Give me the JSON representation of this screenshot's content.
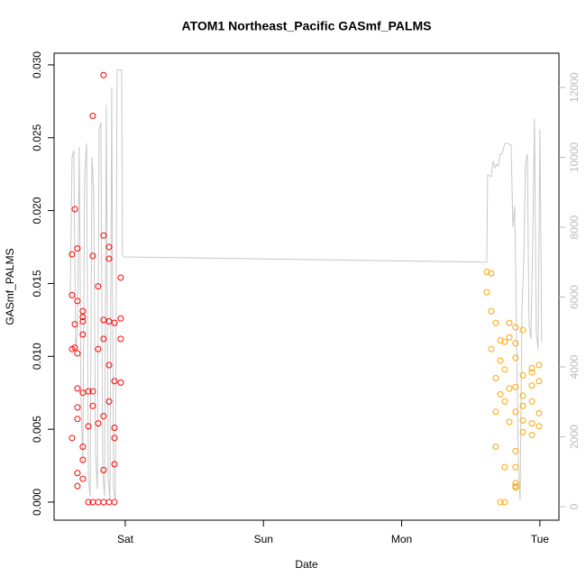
{
  "chart_data": {
    "type": "scatter",
    "title": "ATOM1 Northeast_Pacific GASmf_PALMS",
    "x_label": "Date",
    "y_label": "GASmf_PALMS",
    "xlim": [
      -0.515,
      3.138
    ],
    "ylim": [
      -0.00124,
      0.0308
    ],
    "y2lim": [
      -387,
      12981
    ],
    "xticks": [
      {
        "value": 0,
        "label": "Sat"
      },
      {
        "value": 1,
        "label": "Sun"
      },
      {
        "value": 2,
        "label": "Mon"
      },
      {
        "value": 3,
        "label": "Tue"
      }
    ],
    "yticks": [
      {
        "value": 0,
        "label": "0.000"
      },
      {
        "value": 0.005,
        "label": "0.005"
      },
      {
        "value": 0.01,
        "label": "0.010"
      },
      {
        "value": 0.015,
        "label": "0.015"
      },
      {
        "value": 0.02,
        "label": "0.020"
      },
      {
        "value": 0.025,
        "label": "0.025"
      },
      {
        "value": 0.03,
        "label": "0.030"
      }
    ],
    "y2ticks": [
      0,
      2000,
      4000,
      6000,
      8000,
      10000,
      12000
    ],
    "series": [
      {
        "type": "line",
        "axis": "y2",
        "color": "#c8c8c8",
        "x": [
          -0.398,
          -0.385,
          -0.372,
          -0.359,
          -0.346,
          -0.333,
          -0.32,
          -0.307,
          -0.294,
          -0.28,
          -0.267,
          -0.254,
          -0.241,
          -0.228,
          -0.215,
          -0.202,
          -0.189,
          -0.176,
          -0.163,
          -0.15,
          -0.137,
          -0.124,
          -0.111,
          -0.098,
          -0.085,
          -0.072,
          -0.059,
          -0.046,
          -0.026,
          -0.02,
          -0.013,
          2.616,
          2.622,
          2.648,
          2.661,
          2.674,
          2.687,
          2.7,
          2.713,
          2.726,
          2.746,
          2.766,
          2.792,
          2.805,
          2.818,
          2.831,
          2.844,
          2.857,
          2.87,
          2.883,
          2.896,
          2.909,
          2.922,
          2.935,
          2.948,
          2.961,
          2.974,
          2.987,
          3.0,
          3.013
        ],
        "values": [
          6000,
          10000,
          10200,
          4500,
          5000,
          10300,
          3000,
          1200,
          9500,
          10400,
          800,
          300,
          10000,
          9000,
          1500,
          500,
          10800,
          11000,
          1000,
          300,
          11500,
          800,
          200,
          12000,
          500,
          200,
          12500,
          12500,
          12500,
          7200,
          7150,
          7000,
          9500,
          9450,
          9900,
          9700,
          9800,
          9750,
          10100,
          10100,
          10400,
          10400,
          10350,
          8000,
          8600,
          5000,
          1200,
          200,
          5600,
          7000,
          9800,
          10100,
          5200,
          4800,
          7500,
          11100,
          5000,
          4500,
          10800,
          4700
        ]
      },
      {
        "type": "scatter",
        "color": "#ff0000",
        "x": [
          -0.385,
          -0.385,
          -0.385,
          -0.385,
          -0.365,
          -0.365,
          -0.365,
          -0.346,
          -0.346,
          -0.346,
          -0.346,
          -0.346,
          -0.346,
          -0.346,
          -0.346,
          -0.307,
          -0.307,
          -0.307,
          -0.307,
          -0.307,
          -0.307,
          -0.307,
          -0.307,
          -0.267,
          -0.267,
          -0.267,
          -0.235,
          -0.235,
          -0.235,
          -0.235,
          -0.235,
          -0.196,
          -0.196,
          -0.196,
          -0.196,
          -0.157,
          -0.157,
          -0.157,
          -0.157,
          -0.157,
          -0.157,
          -0.157,
          -0.117,
          -0.117,
          -0.117,
          -0.117,
          -0.117,
          -0.117,
          -0.078,
          -0.078,
          -0.078,
          -0.078,
          -0.078,
          -0.078,
          -0.033,
          -0.033,
          -0.033,
          -0.033
        ],
        "values": [
          0.017,
          0.0142,
          0.0105,
          0.0044,
          0.0201,
          0.0122,
          0.0106,
          0.0078,
          0.0065,
          0.002,
          0.0011,
          0.0174,
          0.0138,
          0.0102,
          0.0057,
          0.0038,
          0.0029,
          0.0127,
          0.0016,
          0.0124,
          0.0115,
          0.0075,
          0.0131,
          0.0052,
          0,
          0.0076,
          0.0265,
          0.0169,
          0.0066,
          0,
          0.0076,
          0.0148,
          0.0105,
          0.0054,
          0,
          0.0183,
          0.0293,
          0.0112,
          0.0125,
          0.0059,
          0.0022,
          0,
          0.0175,
          0.0167,
          0.0124,
          0.0094,
          0.0069,
          0,
          0.0123,
          0.0083,
          0.0051,
          0.0044,
          0.0026,
          0,
          0.0154,
          0.0126,
          0.0112,
          0.0082
        ]
      },
      {
        "type": "scatter",
        "color": "#ffa500",
        "x": [
          2.616,
          2.616,
          2.648,
          2.648,
          2.648,
          2.681,
          2.681,
          2.681,
          2.681,
          2.714,
          2.714,
          2.714,
          2.714,
          2.746,
          2.746,
          2.746,
          2.746,
          2.746,
          2.779,
          2.779,
          2.779,
          2.779,
          2.824,
          2.824,
          2.824,
          2.824,
          2.824,
          2.824,
          2.824,
          2.824,
          2.824,
          2.824,
          2.877,
          2.877,
          2.877,
          2.877,
          2.877,
          2.877,
          2.942,
          2.942,
          2.942,
          2.942,
          2.942,
          2.942,
          2.994,
          2.994,
          2.994,
          2.994
        ],
        "values": [
          0.0144,
          0.0158,
          0.0157,
          0.0131,
          0.0105,
          0.0123,
          0.0085,
          0.0062,
          0.0038,
          0.0111,
          0.0074,
          0,
          0.0097,
          0.011,
          0.0091,
          0.0069,
          0,
          0.0024,
          0.0078,
          0.0123,
          0.0113,
          0.0055,
          0.012,
          0.0109,
          0.0099,
          0.0079,
          0.0062,
          0.0035,
          0.0024,
          0.0013,
          0.0011,
          0.001,
          0.0118,
          0.0087,
          0.0073,
          0.0066,
          0.0056,
          0.0048,
          0.0092,
          0.0089,
          0.008,
          0.0069,
          0.0054,
          0.0046,
          0.0094,
          0.0083,
          0.0061,
          0.0052
        ]
      }
    ]
  }
}
